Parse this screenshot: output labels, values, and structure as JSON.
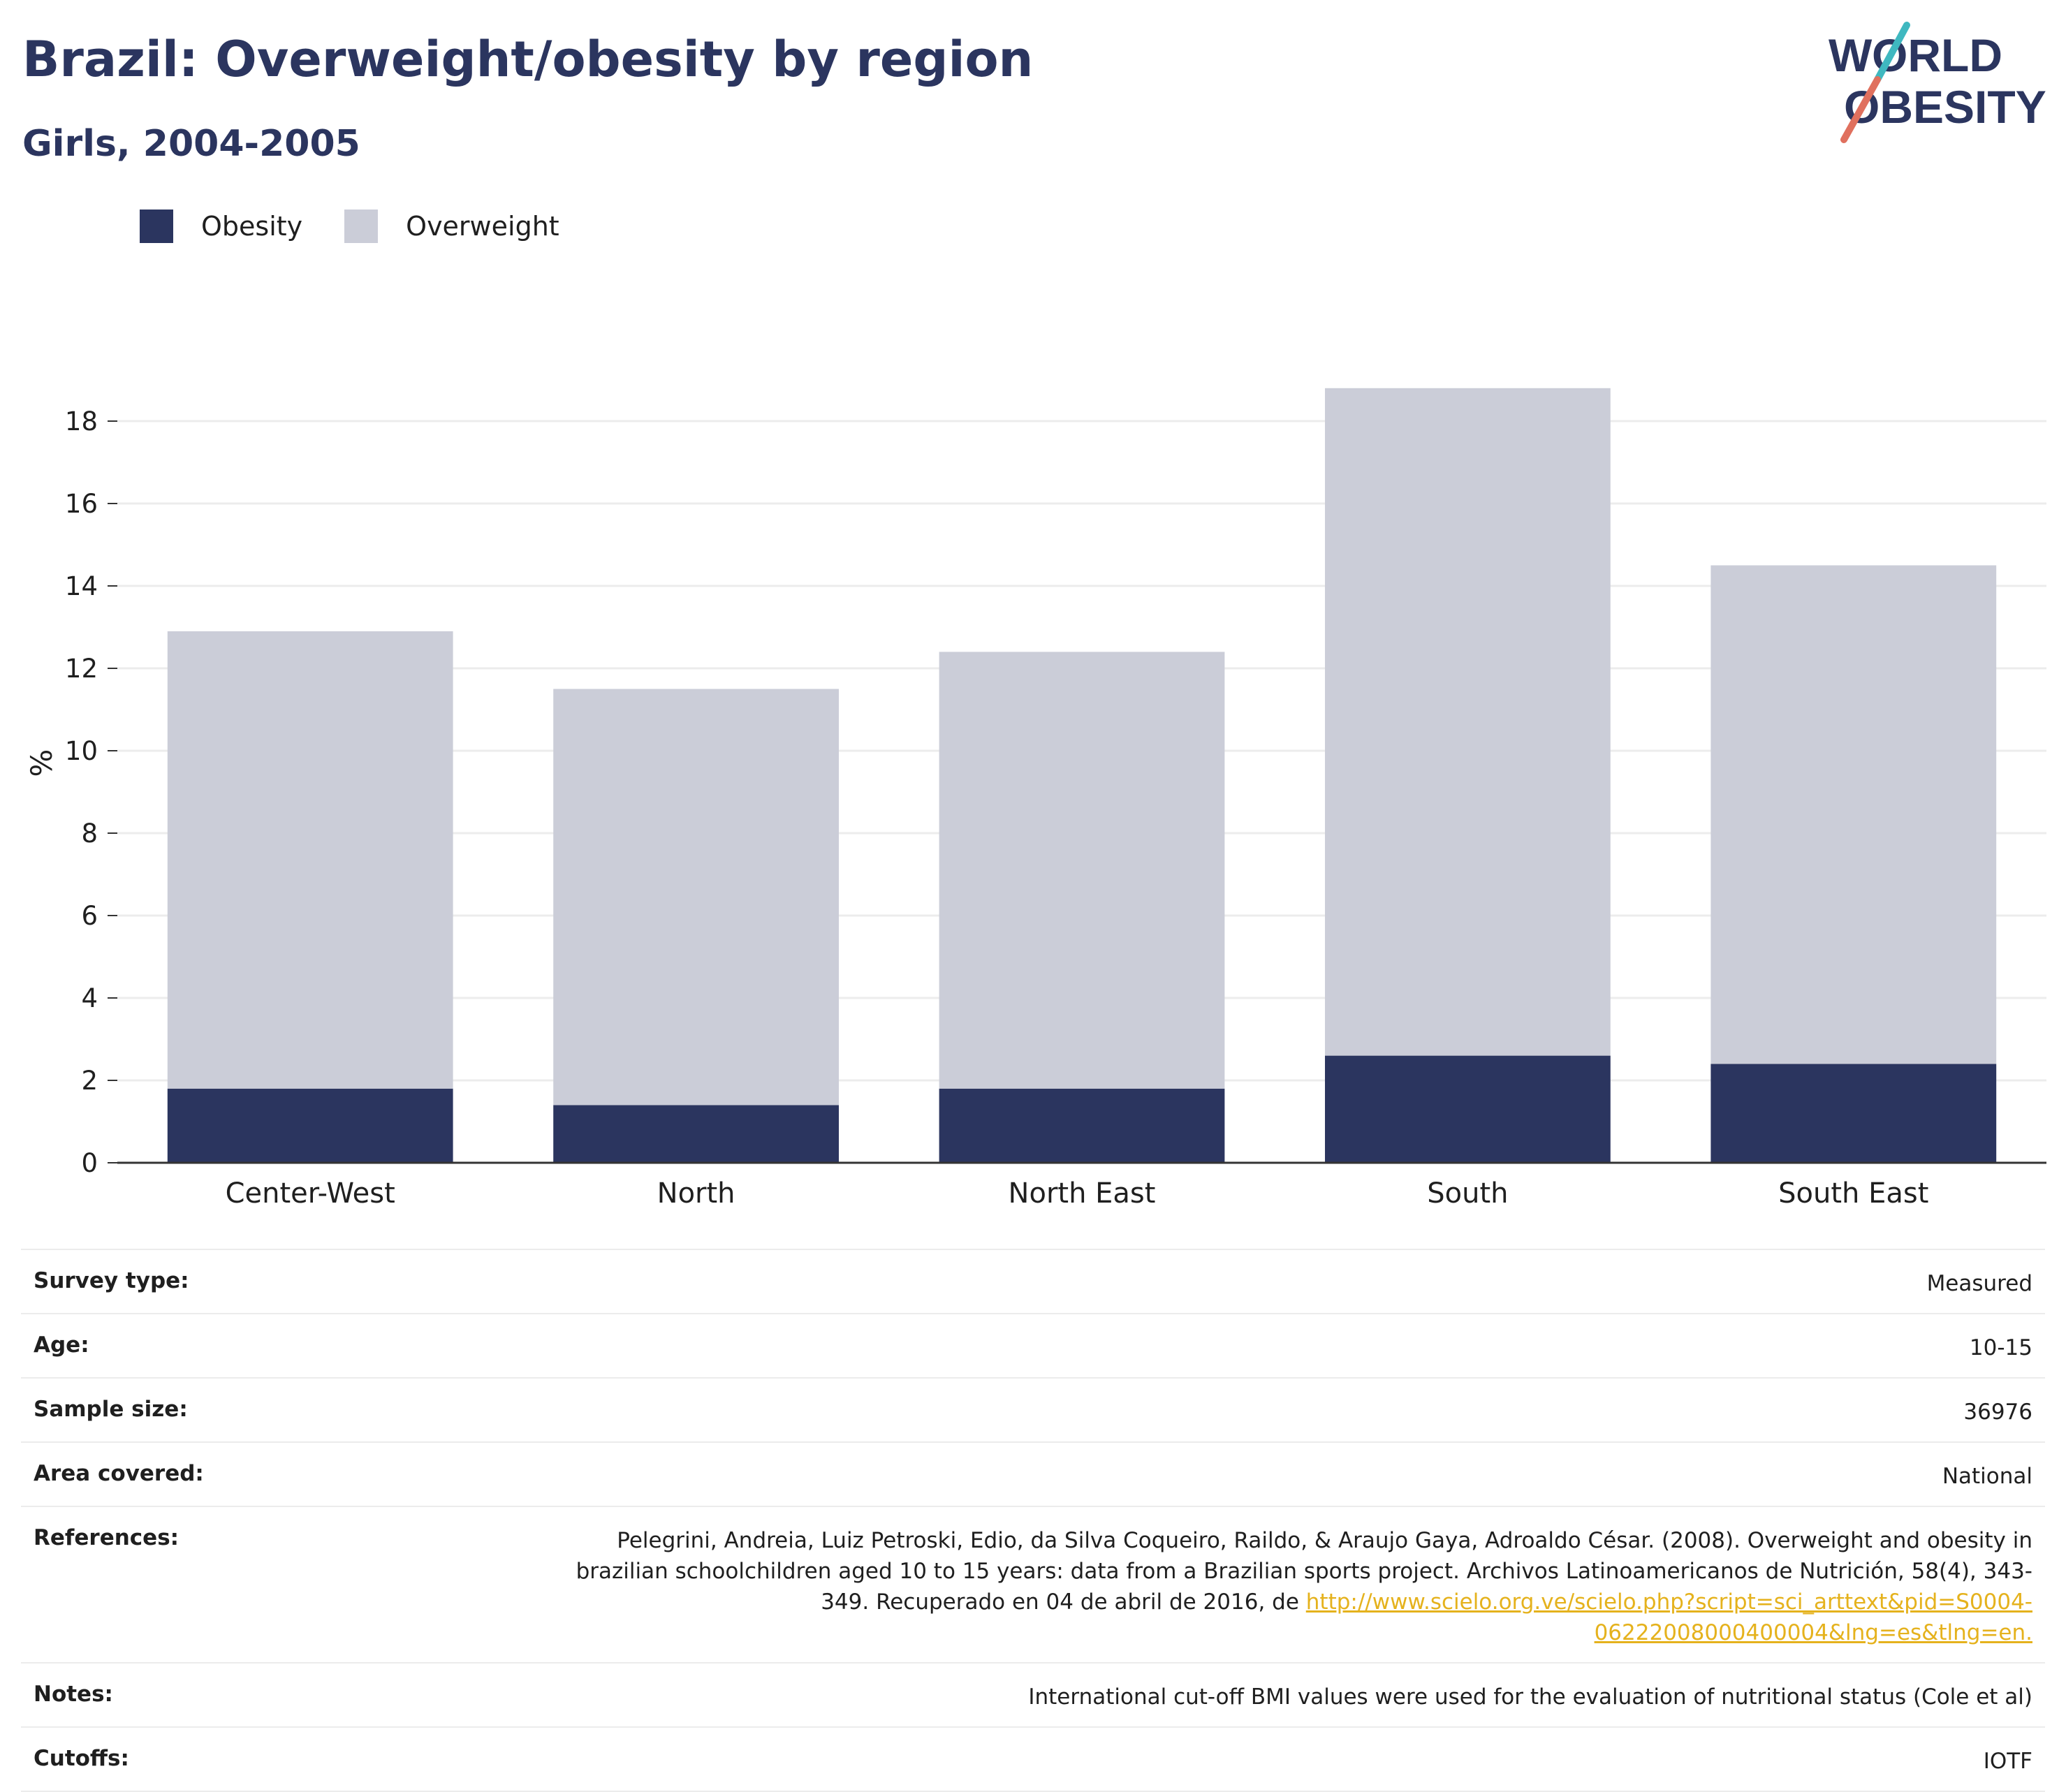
{
  "title": "Brazil: Overweight/obesity by region",
  "subtitle": "Girls, 2004-2005",
  "logo": {
    "line1": "WORLD",
    "line2": "OBESITY"
  },
  "legend": [
    {
      "label": "Obesity",
      "color": "#2b355f"
    },
    {
      "label": "Overweight",
      "color": "#cbcdd8"
    }
  ],
  "chart_data": {
    "type": "bar",
    "stacked": true,
    "categories": [
      "Center-West",
      "North",
      "North East",
      "South",
      "South East"
    ],
    "series": [
      {
        "name": "Obesity",
        "color": "#2b355f",
        "values": [
          1.8,
          1.4,
          1.8,
          2.6,
          2.4
        ]
      },
      {
        "name": "Overweight",
        "color": "#cbcdd8",
        "values": [
          11.1,
          10.1,
          10.6,
          16.2,
          12.1
        ]
      }
    ],
    "ylabel": "%",
    "ylim": [
      0,
      19.5
    ],
    "yticks": [
      0,
      2,
      4,
      6,
      8,
      10,
      12,
      14,
      16,
      18
    ],
    "grid": true,
    "legend_position": "top-left"
  },
  "info": [
    {
      "label": "Survey type:",
      "value": "Measured"
    },
    {
      "label": "Age:",
      "value": "10-15"
    },
    {
      "label": "Sample size:",
      "value": "36976"
    },
    {
      "label": "Area covered:",
      "value": "National"
    },
    {
      "label": "References:",
      "value": "Pelegrini, Andreia, Luiz Petroski, Edio, da Silva Coqueiro, Raildo, & Araujo Gaya, Adroaldo César. (2008). Overweight and obesity in brazilian schoolchildren aged 10 to 15 years: data from a Brazilian sports project. Archivos Latinoamericanos de Nutrición, 58(4), 343-349. Recuperado en 04 de abril de 2016, de ",
      "link": "http://www.scielo.org.ve/scielo.php?script=sci_arttext&pid=S0004-06222008000400004&lng=es&tlng=en."
    },
    {
      "label": "Notes:",
      "value": "International cut-off BMI values were used for the evaluation of nutritional status (Cole et al)"
    },
    {
      "label": "Cutoffs:",
      "value": "IOTF"
    }
  ]
}
